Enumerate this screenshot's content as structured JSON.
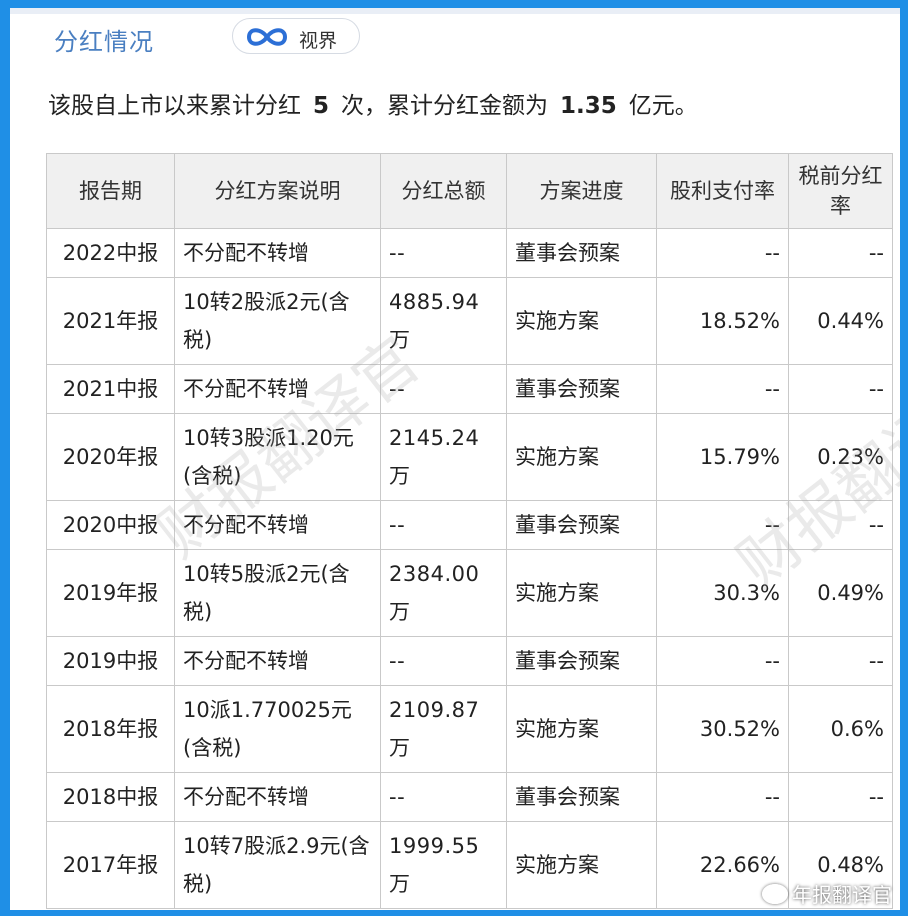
{
  "header": {
    "section_title": "分红情况",
    "shijie_label": "视界",
    "shijie_icon": "infinity-icon"
  },
  "summary": {
    "prefix": "该股自上市以来累计分红",
    "count": "5",
    "middle": "次，累计分红金额为",
    "amount": "1.35",
    "suffix": "亿元。"
  },
  "table": {
    "headers": [
      "报告期",
      "分红方案说明",
      "分红总额",
      "方案进度",
      "股利支付率",
      "税前分红率"
    ],
    "rows": [
      {
        "period": "2022中报",
        "plan": "不分配不转增",
        "total": "--",
        "status": "董事会预案",
        "payout": "--",
        "yield": "--"
      },
      {
        "period": "2021年报",
        "plan": "10转2股派2元(含税)",
        "total": "4885.94万",
        "status": "实施方案",
        "payout": "18.52%",
        "yield": "0.44%"
      },
      {
        "period": "2021中报",
        "plan": "不分配不转增",
        "total": "--",
        "status": "董事会预案",
        "payout": "--",
        "yield": "--"
      },
      {
        "period": "2020年报",
        "plan": "10转3股派1.20元(含税)",
        "total": "2145.24万",
        "status": "实施方案",
        "payout": "15.79%",
        "yield": "0.23%"
      },
      {
        "period": "2020中报",
        "plan": "不分配不转增",
        "total": "--",
        "status": "董事会预案",
        "payout": "--",
        "yield": "--"
      },
      {
        "period": "2019年报",
        "plan": "10转5股派2元(含税)",
        "total": "2384.00万",
        "status": "实施方案",
        "payout": "30.3%",
        "yield": "0.49%"
      },
      {
        "period": "2019中报",
        "plan": "不分配不转增",
        "total": "--",
        "status": "董事会预案",
        "payout": "--",
        "yield": "--"
      },
      {
        "period": "2018年报",
        "plan": "10派1.770025元(含税)",
        "total": "2109.87万",
        "status": "实施方案",
        "payout": "30.52%",
        "yield": "0.6%"
      },
      {
        "period": "2018中报",
        "plan": "不分配不转增",
        "total": "--",
        "status": "董事会预案",
        "payout": "--",
        "yield": "--"
      },
      {
        "period": "2017年报",
        "plan": "10转7股派2.9元(含税)",
        "total": "1999.55万",
        "status": "实施方案",
        "payout": "22.66%",
        "yield": "0.48%"
      }
    ]
  },
  "watermark": {
    "text": "财报翻译官",
    "bottom_text": "年报翻译官",
    "bottom_icon": "weibo-icon"
  },
  "colors": {
    "frame": "#1f8fe6",
    "title": "#4a7fc1",
    "header_bg": "#f0f0f0",
    "grid": "#c9c9c9"
  }
}
